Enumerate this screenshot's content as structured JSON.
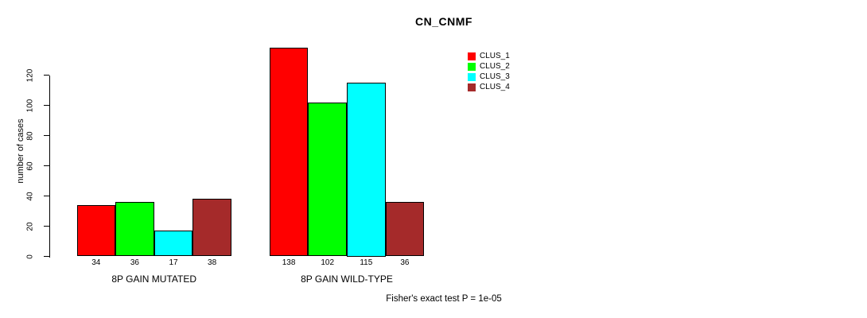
{
  "title": "CN_CNMF",
  "footer": "Fisher's exact test P = 1e-05",
  "colors": {
    "background": "#FFFFFF",
    "axis": "#000000",
    "text": "#000000",
    "clus_1": "#FF0000",
    "clus_2": "#00FF00",
    "clus_3": "#00FFFF",
    "clus_4": "#A52A2A"
  },
  "chart_data": {
    "type": "bar",
    "title": "CN_CNMF",
    "categories": [
      "8P GAIN MUTATED",
      "8P GAIN WILD-TYPE"
    ],
    "series": [
      {
        "name": "CLUS_1",
        "color": "#FF0000",
        "values": [
          34,
          138
        ]
      },
      {
        "name": "CLUS_2",
        "color": "#00FF00",
        "values": [
          36,
          102
        ]
      },
      {
        "name": "CLUS_3",
        "color": "#00FFFF",
        "values": [
          17,
          115
        ]
      },
      {
        "name": "CLUS_4",
        "color": "#A52A2A",
        "values": [
          38,
          36
        ]
      }
    ],
    "bar_value_labels": [
      [
        34,
        36,
        17,
        38
      ],
      [
        138,
        102,
        115,
        36
      ]
    ],
    "xlabel": "",
    "ylabel": "number of cases",
    "yticks": [
      0,
      20,
      40,
      60,
      80,
      100,
      120
    ],
    "ylim": [
      0,
      140
    ],
    "grid": false,
    "bars_outlined": true,
    "legend_position": "top-right",
    "legend_labels": [
      "CLUS_1",
      "CLUS_2",
      "CLUS_3",
      "CLUS_4"
    ],
    "annotation": "Fisher's exact test P = 1e-05"
  }
}
